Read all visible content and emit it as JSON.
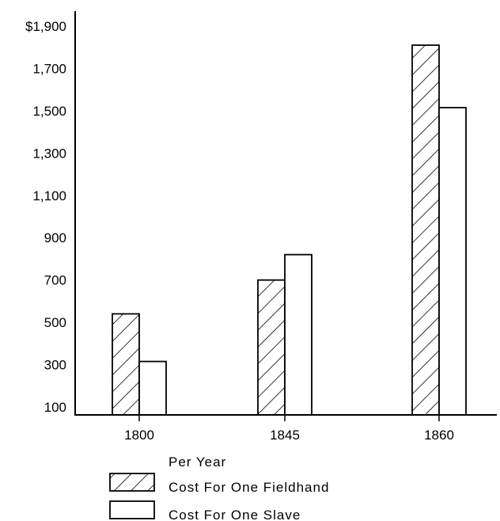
{
  "chart_data": {
    "type": "bar",
    "categories": [
      "1800",
      "1845",
      "1860"
    ],
    "series": [
      {
        "name": "Cost For One Fieldhand",
        "values": [
          540,
          700,
          1810
        ],
        "pattern": "hatched"
      },
      {
        "name": "Cost For One Slave",
        "values": [
          315,
          820,
          1515
        ],
        "pattern": "plain"
      }
    ],
    "y_ticks": [
      {
        "value": 100,
        "label": "100"
      },
      {
        "value": 300,
        "label": "300"
      },
      {
        "value": 500,
        "label": "500"
      },
      {
        "value": 700,
        "label": "700"
      },
      {
        "value": 900,
        "label": "900"
      },
      {
        "value": 1100,
        "label": "1,100"
      },
      {
        "value": 1300,
        "label": "1,300"
      },
      {
        "value": 1500,
        "label": "1,500"
      },
      {
        "value": 1700,
        "label": "1,700"
      },
      {
        "value": 1900,
        "label": "$1,900"
      }
    ],
    "ylim": [
      20,
      1960
    ],
    "legend_title": "Per Year",
    "legend_position": "bottom-center",
    "grid": false,
    "colors": {
      "stroke": "#000000",
      "fill": "#ffffff"
    }
  }
}
